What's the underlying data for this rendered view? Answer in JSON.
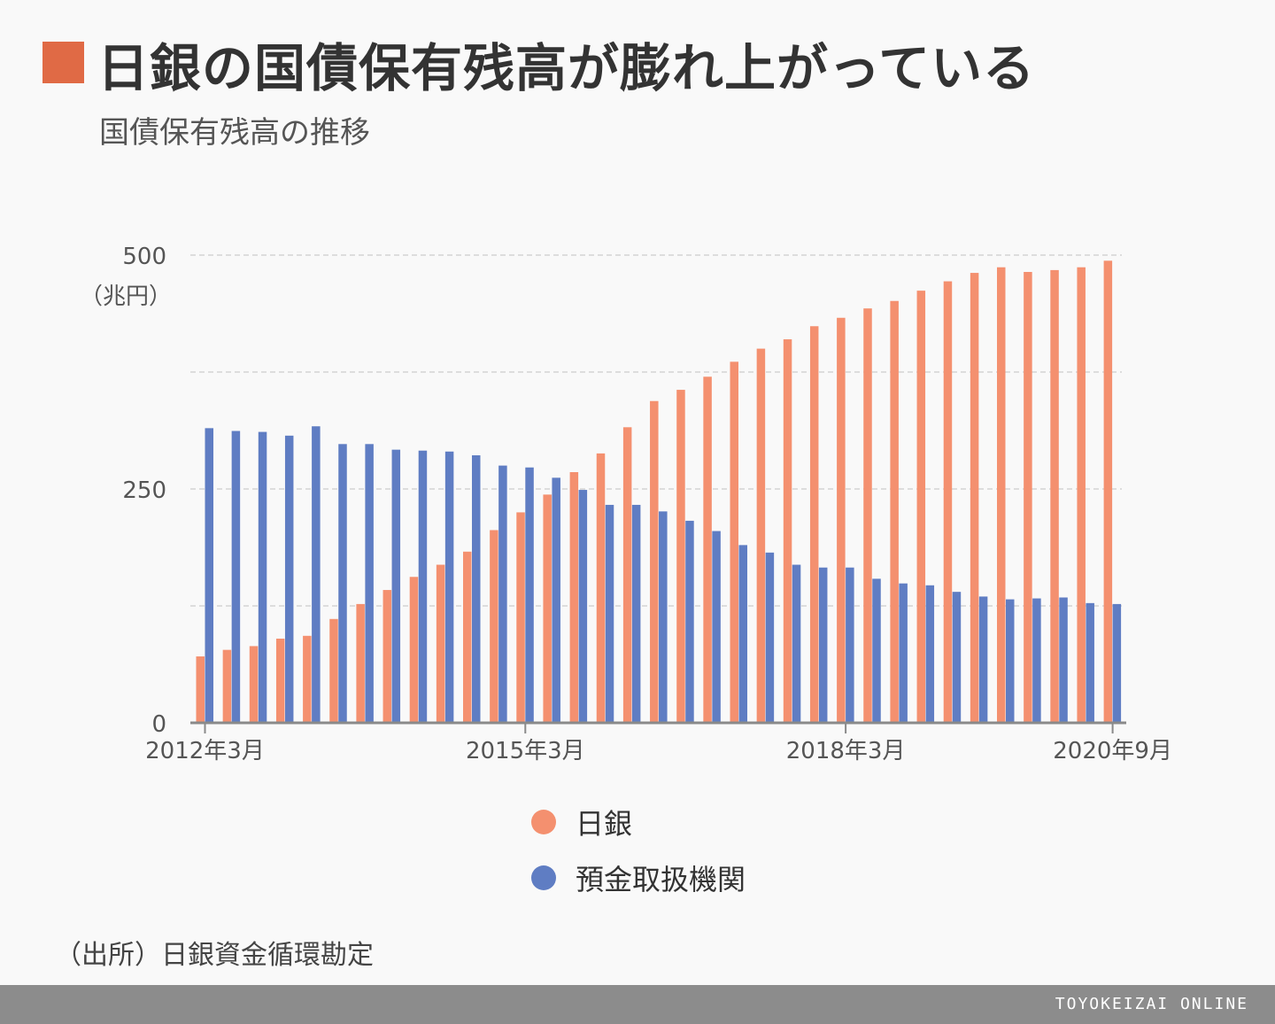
{
  "header": {
    "title": "日銀の国債保有残高が膨れ上がっている",
    "subtitle": "国債保有残高の推移"
  },
  "chart_data": {
    "type": "bar",
    "unit_label": "（兆円）",
    "ylim": [
      0,
      500
    ],
    "yticks": [
      "0",
      "250",
      "500"
    ],
    "xtick_labels": [
      "2012年3月",
      "2015年3月",
      "2018年3月",
      "2020年9月"
    ],
    "grid": true,
    "legend_placement": "bottom",
    "series": [
      {
        "name": "日銀",
        "color": "#f4906f",
        "values": [
          71,
          78,
          82,
          90,
          93,
          111,
          127,
          142,
          156,
          169,
          183,
          206,
          225,
          244,
          268,
          288,
          316,
          344,
          356,
          370,
          386,
          400,
          410,
          424,
          433,
          443,
          451,
          462,
          472,
          481,
          487,
          482,
          484,
          487,
          494
        ]
      },
      {
        "name": "預金取扱機関",
        "color": "#5f7dc3",
        "values": [
          315,
          312,
          311,
          307,
          317,
          298,
          298,
          292,
          291,
          290,
          286,
          275,
          273,
          262,
          249,
          233,
          233,
          226,
          216,
          205,
          190,
          182,
          169,
          166,
          166,
          154,
          149,
          147,
          140,
          135,
          132,
          133,
          134,
          128,
          127
        ]
      }
    ]
  },
  "legend": [
    {
      "label": "日銀",
      "color": "#f4906f"
    },
    {
      "label": "預金取扱機関",
      "color": "#5f7dc3"
    }
  ],
  "source": "（出所）日銀資金循環勘定",
  "footer": {
    "brand": "TOYOKEIZAI ONLINE"
  }
}
